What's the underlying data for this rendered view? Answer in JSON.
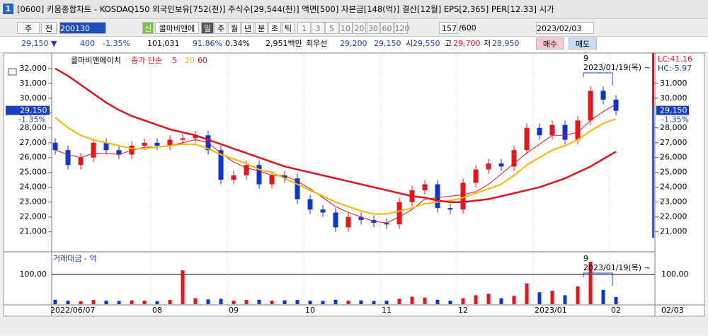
{
  "window": {
    "number": "1",
    "title": "[0600] 키움종합차트 - KOSDAQ150 외국인보유[752(천)] 주식수[29,544(천)] 액면[500] 자본금[148(억)] 결산[12월] EPS[2,365] PER[12.33] 시가"
  },
  "toolbar": {
    "unit": "주",
    "scope": "전",
    "code": "200130",
    "new": "신",
    "name": "콜마비앤에",
    "periods": [
      "일",
      "주",
      "월",
      "년",
      "분",
      "초",
      "틱"
    ],
    "intervals": [
      "1",
      "3",
      "5",
      "10",
      "20",
      "30",
      "60",
      "120"
    ],
    "count": "157",
    "total": "/600",
    "date": "2023/02/03"
  },
  "quote": {
    "price": "29,150 ▼",
    "change": "400",
    "rate": "-1.35%",
    "volume": "101,031",
    "ratio": "91.86%",
    "turnover": "0.34%",
    "amount": "2,951백만",
    "best_label": "최우선",
    "best_ask": "29,200",
    "best_bid": "29,150",
    "open_label": "시",
    "open": "29,550",
    "high_label": "고",
    "high": "29,700",
    "low_label": "저",
    "low": "28,950",
    "buy": "매수",
    "sell": "매도"
  },
  "chart_data": {
    "type": "candlestick",
    "legend_title": "콜마비앤에이치",
    "legend_label": "종가 단순",
    "categories": [
      "2022/06/07",
      null,
      null,
      null,
      null,
      null,
      null,
      null,
      "08",
      null,
      null,
      null,
      null,
      null,
      "09",
      null,
      null,
      null,
      null,
      null,
      "10",
      null,
      null,
      null,
      null,
      null,
      "11",
      null,
      null,
      null,
      null,
      null,
      "12",
      null,
      null,
      null,
      null,
      null,
      "2023/01",
      null,
      null,
      null,
      null,
      null,
      "02"
    ],
    "last_date": "02/03",
    "open": [
      27000,
      26500,
      25500,
      26000,
      27000,
      26500,
      26200,
      26800,
      27000,
      26800,
      27200,
      27300,
      27500,
      26500,
      24500,
      24800,
      25500,
      24200,
      24800,
      24600,
      23200,
      22500,
      22300,
      21300,
      22000,
      21800,
      21600,
      21500,
      23000,
      23800,
      24200,
      22600,
      22500,
      24300,
      25200,
      25600,
      25400,
      26500,
      28000,
      27500,
      28200,
      27200,
      28500,
      30500,
      29900
    ],
    "high": [
      27300,
      26800,
      26300,
      27300,
      27300,
      26800,
      27100,
      27300,
      27300,
      27500,
      27600,
      27800,
      27800,
      26800,
      25100,
      25800,
      25800,
      25100,
      25100,
      24900,
      23500,
      22800,
      22600,
      22300,
      22300,
      22100,
      21900,
      23300,
      24100,
      24500,
      24500,
      22900,
      24600,
      25500,
      25900,
      25900,
      26800,
      28300,
      28300,
      28500,
      28500,
      28800,
      30800,
      30800,
      30200
    ],
    "low": [
      26200,
      25200,
      25200,
      25700,
      26200,
      25900,
      25900,
      26500,
      26500,
      26500,
      26900,
      27000,
      26200,
      24200,
      24200,
      24500,
      23900,
      23900,
      24300,
      22900,
      22200,
      22000,
      21000,
      21000,
      21500,
      21300,
      21200,
      21200,
      22700,
      23500,
      22300,
      22200,
      22200,
      24000,
      24900,
      25100,
      25100,
      26200,
      27200,
      27200,
      26900,
      26900,
      28200,
      29600,
      28850
    ],
    "close": [
      26500,
      25500,
      26000,
      27000,
      26500,
      26200,
      26800,
      27000,
      26800,
      27200,
      27300,
      27500,
      26500,
      24500,
      24800,
      25500,
      24200,
      24800,
      24600,
      23200,
      22500,
      22300,
      21300,
      22000,
      21800,
      21600,
      21500,
      23000,
      23800,
      24200,
      22600,
      22500,
      24300,
      25200,
      25600,
      25400,
      26500,
      28000,
      27500,
      28200,
      27200,
      28500,
      30500,
      29900,
      29150
    ],
    "up_color": "#e8141b",
    "down_color": "#0b35d6",
    "series": [
      {
        "name": "5",
        "color": "#e0141b",
        "width": 1,
        "values": [
          26500,
          26200,
          26000,
          26300,
          26300,
          26200,
          26500,
          26700,
          26700,
          26800,
          27000,
          27200,
          27000,
          26300,
          25700,
          25300,
          25100,
          24800,
          24800,
          24400,
          23900,
          23300,
          22700,
          22300,
          22000,
          21700,
          21600,
          22000,
          22500,
          23200,
          23300,
          23400,
          23500,
          23700,
          24200,
          24900,
          25600,
          26300,
          26900,
          27500,
          27500,
          27700,
          28500,
          29100,
          29600
        ]
      },
      {
        "name": "20",
        "color": "#f2b800",
        "width": 2,
        "values": [
          28700,
          28000,
          27500,
          27200,
          27000,
          26800,
          26600,
          26600,
          26700,
          26800,
          26900,
          26900,
          26600,
          26200,
          25900,
          25600,
          25200,
          25000,
          24600,
          24200,
          23800,
          23400,
          23000,
          22700,
          22400,
          22200,
          22200,
          22400,
          22600,
          22900,
          23000,
          23100,
          23300,
          23600,
          23900,
          24200,
          24800,
          25500,
          26000,
          26500,
          26800,
          27200,
          27800,
          28300,
          28600
        ]
      },
      {
        "name": "60",
        "color": "#d9161c",
        "width": 2.5,
        "values": [
          32000,
          31500,
          30900,
          30300,
          29700,
          29200,
          28800,
          28500,
          28200,
          27900,
          27700,
          27500,
          27200,
          26900,
          26600,
          26300,
          26000,
          25700,
          25400,
          25200,
          25000,
          24800,
          24600,
          24400,
          24200,
          24000,
          23800,
          23600,
          23400,
          23300,
          23100,
          23000,
          23000,
          23100,
          23200,
          23400,
          23600,
          23800,
          24000,
          24300,
          24600,
          25000,
          25400,
          25900,
          26400
        ]
      }
    ],
    "ylim": [
      19700,
      32800
    ],
    "yticks": [
      {
        "value": 32000,
        "label": "32,000"
      },
      {
        "value": 31000,
        "label": "31,000"
      },
      {
        "value": 30000,
        "label": "30,000"
      },
      {
        "value": 29000,
        "label": "29,000"
      },
      {
        "value": 28000,
        "label": "28,000"
      },
      {
        "value": 27000,
        "label": "27,000"
      },
      {
        "value": 26000,
        "label": "26,000"
      },
      {
        "value": 25000,
        "label": "25,000"
      },
      {
        "value": 24000,
        "label": "24,000"
      },
      {
        "value": 23000,
        "label": "23,000"
      },
      {
        "value": 22000,
        "label": "22,000"
      },
      {
        "value": 21000,
        "label": "21,000"
      }
    ],
    "current": {
      "value": 29150,
      "label": "29,150",
      "rate": "-1.35%"
    },
    "lc": "LC:41.16",
    "hc": "HC:-5.97",
    "annotation": {
      "count": "9",
      "date": "2023/01/19(목) ~"
    },
    "volume": {
      "title": "거래대금 - 억",
      "ylim": [
        0,
        162
      ],
      "yticks": [
        {
          "value": 100,
          "label": "100,00"
        }
      ],
      "values": [
        15,
        12,
        10,
        14,
        12,
        11,
        13,
        12,
        10,
        14,
        114,
        20,
        16,
        18,
        12,
        14,
        15,
        12,
        13,
        14,
        12,
        11,
        15,
        12,
        13,
        11,
        12,
        18,
        25,
        22,
        15,
        12,
        20,
        30,
        35,
        20,
        28,
        70,
        40,
        45,
        30,
        60,
        143,
        48,
        24
      ]
    }
  }
}
